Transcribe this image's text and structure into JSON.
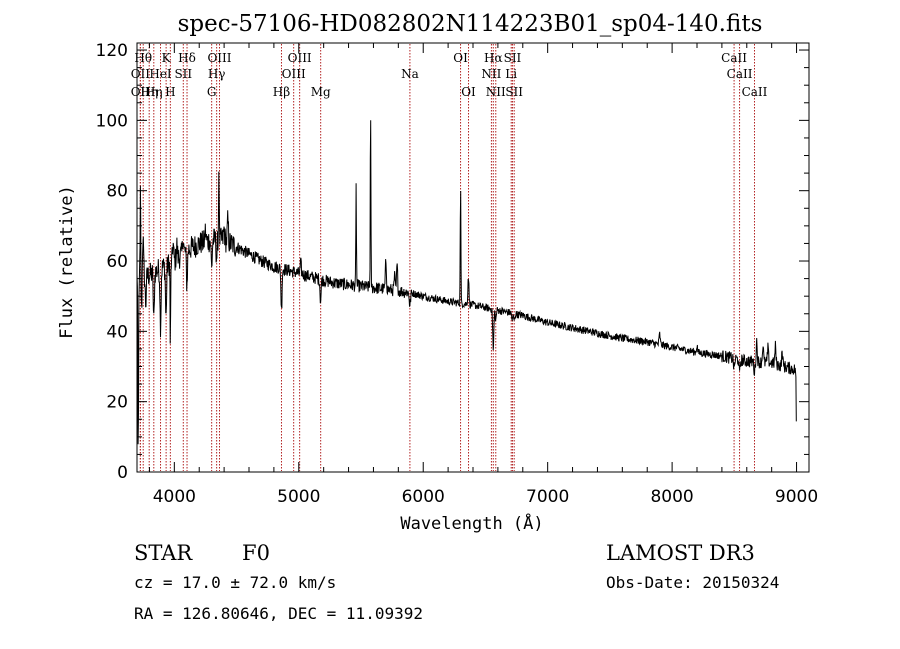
{
  "title": "spec-57106-HD082802N114223B01_sp04-140.fits",
  "footer": {
    "class_label": "STAR",
    "subclass": "F0",
    "survey": "LAMOST DR3",
    "cz": "cz = 17.0 ± 72.0 km/s",
    "obs_date": "Obs-Date: 20150324",
    "coords": "RA = 126.80646, DEC =  11.09392"
  },
  "colors": {
    "line_marker": "#b22222",
    "spectrum": "#000000"
  },
  "chart_data": {
    "type": "line",
    "title": "spec-57106-HD082802N114223B01_sp04-140.fits",
    "xlabel": "Wavelength (Å)",
    "ylabel": "Flux (relative)",
    "xlim": [
      3700,
      9100
    ],
    "ylim": [
      0,
      122
    ],
    "xticks": [
      4000,
      5000,
      6000,
      7000,
      8000,
      9000
    ],
    "yticks": [
      0,
      20,
      40,
      60,
      80,
      100,
      120
    ],
    "continuum": [
      [
        3700,
        55
      ],
      [
        3800,
        56
      ],
      [
        3900,
        58
      ],
      [
        4000,
        60
      ],
      [
        4100,
        63
      ],
      [
        4200,
        65
      ],
      [
        4300,
        66
      ],
      [
        4400,
        66
      ],
      [
        4500,
        64
      ],
      [
        4600,
        62
      ],
      [
        4700,
        60
      ],
      [
        4800,
        58.5
      ],
      [
        4900,
        57.5
      ],
      [
        5000,
        56.5
      ],
      [
        5100,
        55.5
      ],
      [
        5200,
        54.5
      ],
      [
        5300,
        53.7
      ],
      [
        5500,
        52.8
      ],
      [
        5700,
        52
      ],
      [
        5900,
        51
      ],
      [
        6000,
        50
      ],
      [
        6200,
        48.5
      ],
      [
        6400,
        47.5
      ],
      [
        6600,
        46
      ],
      [
        6800,
        44.5
      ],
      [
        7000,
        42.5
      ],
      [
        7200,
        41
      ],
      [
        7400,
        39.5
      ],
      [
        7600,
        38
      ],
      [
        7800,
        37
      ],
      [
        8000,
        35.5
      ],
      [
        8200,
        34
      ],
      [
        8400,
        33
      ],
      [
        8600,
        31.5
      ],
      [
        8800,
        31
      ],
      [
        9000,
        29
      ]
    ],
    "features": [
      {
        "x": 3710,
        "dy": -55
      },
      {
        "x": 3728,
        "dy": 27
      },
      {
        "x": 3736,
        "dy": -10
      },
      {
        "x": 3748,
        "dy": 12
      },
      {
        "x": 3770,
        "dy": -8
      },
      {
        "x": 3835,
        "dy": -14
      },
      {
        "x": 3889,
        "dy": -16
      },
      {
        "x": 3933,
        "dy": -15
      },
      {
        "x": 3968,
        "dy": -24
      },
      {
        "x": 3990,
        "dy": 5
      },
      {
        "x": 4020,
        "dy": 4
      },
      {
        "x": 4070,
        "dy": 5
      },
      {
        "x": 4101,
        "dy": -10
      },
      {
        "x": 4250,
        "dy": 3
      },
      {
        "x": 4300,
        "dy": -8
      },
      {
        "x": 4340,
        "dy": -5
      },
      {
        "x": 4358,
        "dy": 22
      },
      {
        "x": 4400,
        "dy": 3
      },
      {
        "x": 4430,
        "dy": 6
      },
      {
        "x": 4861,
        "dy": -12
      },
      {
        "x": 5016,
        "dy": 3
      },
      {
        "x": 5175,
        "dy": -6
      },
      {
        "x": 5461,
        "dy": 28
      },
      {
        "x": 5577,
        "dy": 50
      },
      {
        "x": 5700,
        "dy": 8
      },
      {
        "x": 5770,
        "dy": 4
      },
      {
        "x": 5790,
        "dy": 7
      },
      {
        "x": 5893,
        "dy": -4
      },
      {
        "x": 6300,
        "dy": 34
      },
      {
        "x": 6363,
        "dy": 8
      },
      {
        "x": 6563,
        "dy": -12
      },
      {
        "x": 6583,
        "dy": -3
      },
      {
        "x": 6716,
        "dy": -2
      },
      {
        "x": 6731,
        "dy": -2
      },
      {
        "x": 7900,
        "dy": 3
      },
      {
        "x": 8200,
        "dy": 2
      },
      {
        "x": 8498,
        "dy": -3
      },
      {
        "x": 8542,
        "dy": -4
      },
      {
        "x": 8662,
        "dy": -3
      },
      {
        "x": 8680,
        "dy": 6
      },
      {
        "x": 8730,
        "dy": 5
      },
      {
        "x": 8770,
        "dy": 4
      },
      {
        "x": 8830,
        "dy": 5
      },
      {
        "x": 8885,
        "dy": 4
      },
      {
        "x": 9000,
        "dy": -22
      }
    ],
    "spectral_lines": [
      {
        "x": 3727,
        "label": "OII",
        "row": 2
      },
      {
        "x": 3727,
        "label": "OII",
        "row": 3
      },
      {
        "x": 3750,
        "label": "Hθ",
        "row": 1
      },
      {
        "x": 3798,
        "label": "Hη",
        "row": 3
      },
      {
        "x": 3835,
        "label": "Hη",
        "row": 3
      },
      {
        "x": 3889,
        "label": "HeI",
        "row": 2
      },
      {
        "x": 3934,
        "label": "K",
        "row": 1
      },
      {
        "x": 3968,
        "label": "H",
        "row": 3
      },
      {
        "x": 4072,
        "label": "SII",
        "row": 2
      },
      {
        "x": 4102,
        "label": "Hδ",
        "row": 1
      },
      {
        "x": 4300,
        "label": "G",
        "row": 3
      },
      {
        "x": 4340,
        "label": "Hγ",
        "row": 2
      },
      {
        "x": 4363,
        "label": "OIII",
        "row": 1
      },
      {
        "x": 4861,
        "label": "Hβ",
        "row": 3
      },
      {
        "x": 4959,
        "label": "OIII",
        "row": 2
      },
      {
        "x": 5007,
        "label": "OIII",
        "row": 1
      },
      {
        "x": 5176,
        "label": "Mg",
        "row": 3
      },
      {
        "x": 5893,
        "label": "Na",
        "row": 2
      },
      {
        "x": 6300,
        "label": "OI",
        "row": 1
      },
      {
        "x": 6364,
        "label": "OI",
        "row": 3
      },
      {
        "x": 6548,
        "label": "NII",
        "row": 2
      },
      {
        "x": 6563,
        "label": "Hα",
        "row": 1
      },
      {
        "x": 6583,
        "label": "NII",
        "row": 3
      },
      {
        "x": 6707,
        "label": "Li",
        "row": 2
      },
      {
        "x": 6717,
        "label": "SII",
        "row": 1
      },
      {
        "x": 6731,
        "label": "SII",
        "row": 3
      },
      {
        "x": 8498,
        "label": "CaII",
        "row": 1
      },
      {
        "x": 8542,
        "label": "CaII",
        "row": 2
      },
      {
        "x": 8662,
        "label": "CaII",
        "row": 3
      }
    ]
  }
}
